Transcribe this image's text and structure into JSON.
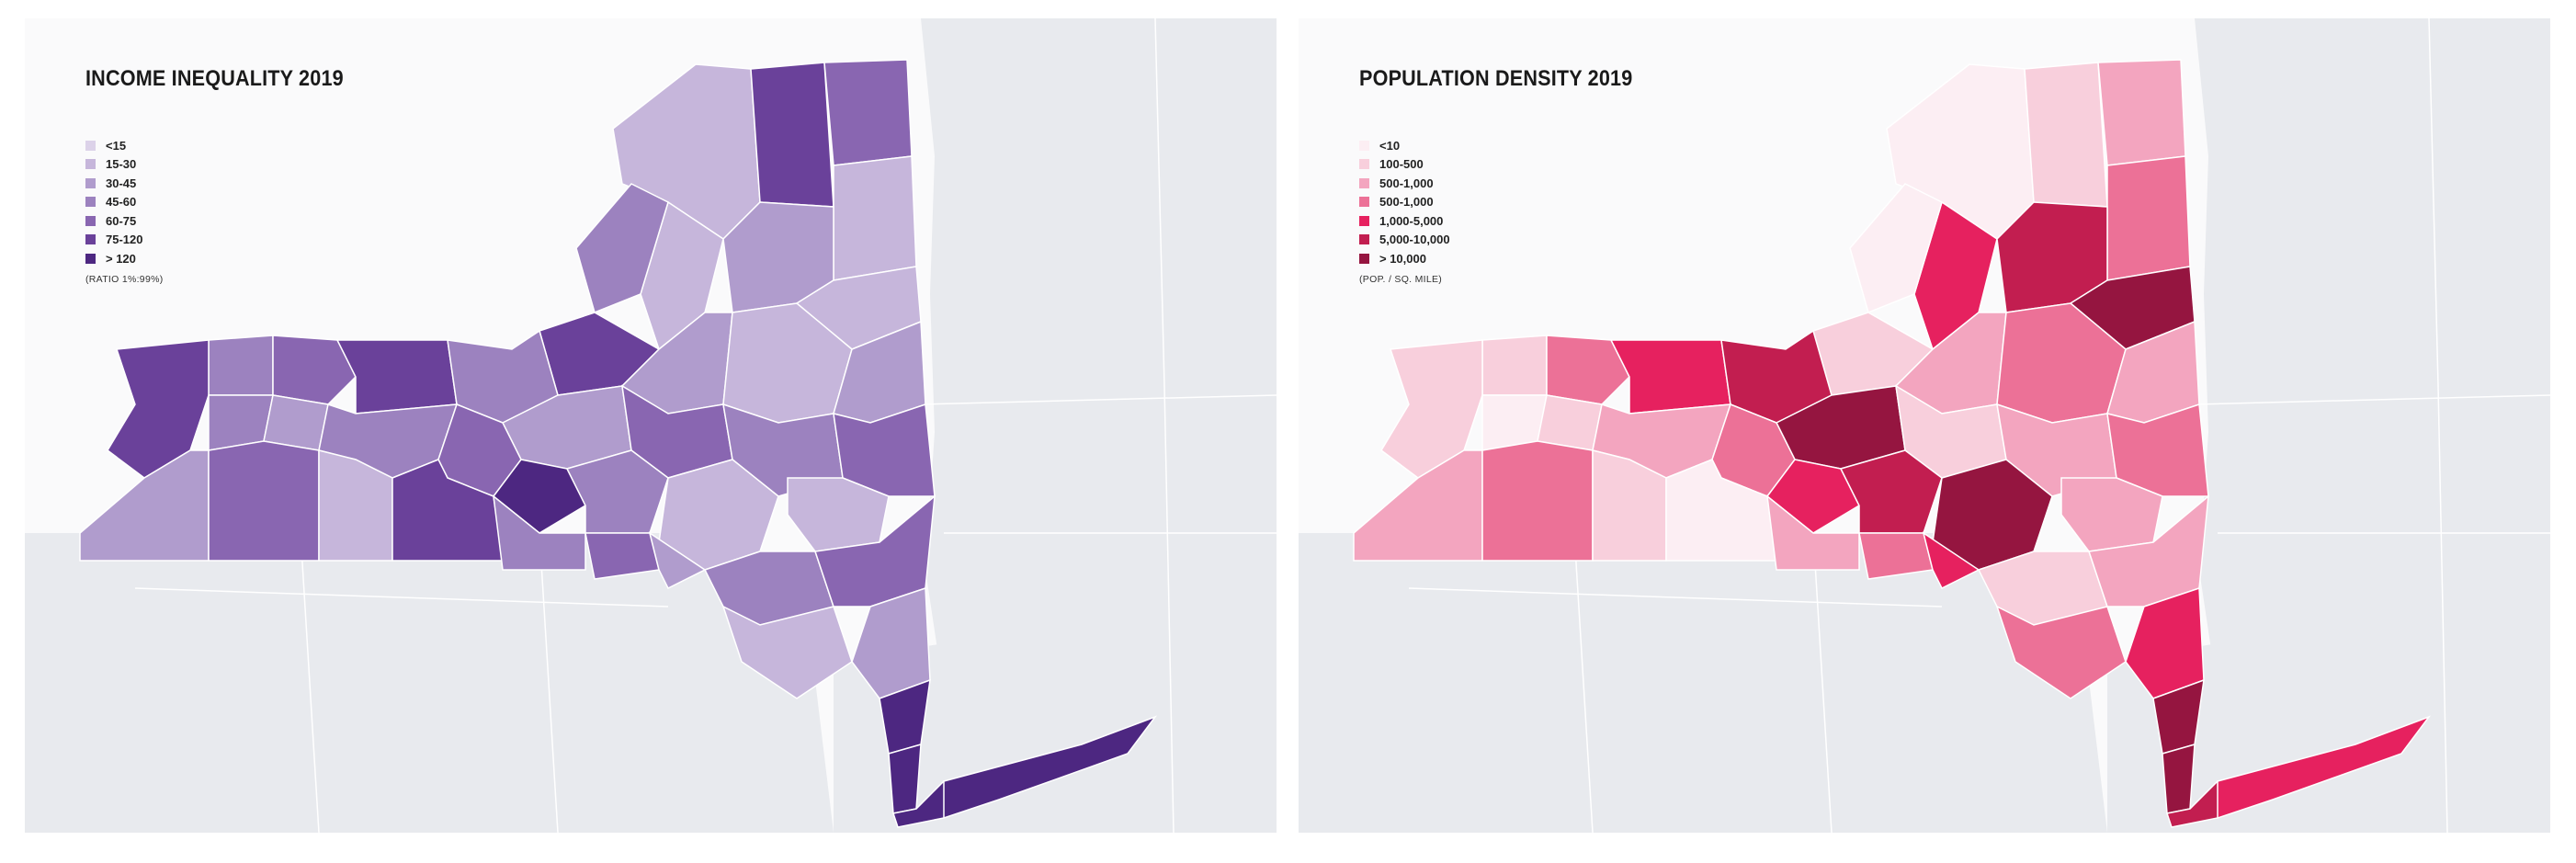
{
  "maps": [
    {
      "title": "INCOME INEQUALITY 2019",
      "unit_note": "(RATIO 1%:99%)",
      "legend": [
        {
          "label": "<15",
          "color": "#dcd2e9"
        },
        {
          "label": "15-30",
          "color": "#c6b6db"
        },
        {
          "label": "30-45",
          "color": "#b09ccd"
        },
        {
          "label": "45-60",
          "color": "#9c82bf"
        },
        {
          "label": "60-75",
          "color": "#8966b1"
        },
        {
          "label": "75-120",
          "color": "#6a419a"
        },
        {
          "label": "> 120",
          "color": "#4d2781"
        }
      ]
    },
    {
      "title": "POPULATION DENSITY 2019",
      "unit_note": "(POP. / SQ. MILE)",
      "legend": [
        {
          "label": "<10",
          "color": "#fceef3"
        },
        {
          "label": "100-500",
          "color": "#f8cfdc"
        },
        {
          "label": "500-1,000",
          "color": "#f3a5bf"
        },
        {
          "label": "500-1,000",
          "color": "#ec7197"
        },
        {
          "label": "1,000-5,000",
          "color": "#e6215f"
        },
        {
          "label": "5,000-10,000",
          "color": "#c21e50"
        },
        {
          "label": "> 10,000",
          "color": "#951540"
        }
      ]
    }
  ],
  "region_levels": {
    "income": [
      1,
      5,
      4,
      1,
      1,
      2,
      1,
      3,
      5,
      2,
      1,
      2,
      3,
      4,
      5,
      3,
      2,
      4,
      3,
      4,
      1,
      5,
      3,
      2,
      3,
      4,
      6,
      3,
      1,
      2,
      4,
      1,
      5,
      3,
      4,
      2,
      3,
      4,
      1,
      2,
      6,
      6,
      6,
      6
    ],
    "density": [
      0,
      1,
      2,
      3,
      4,
      5,
      6,
      0,
      1,
      2,
      3,
      2,
      1,
      3,
      4,
      5,
      6,
      1,
      2,
      3,
      2,
      1,
      0,
      1,
      2,
      3,
      4,
      5,
      6,
      2,
      3,
      1,
      0,
      2,
      3,
      4,
      1,
      2,
      3,
      4,
      6,
      6,
      5,
      4
    ]
  }
}
